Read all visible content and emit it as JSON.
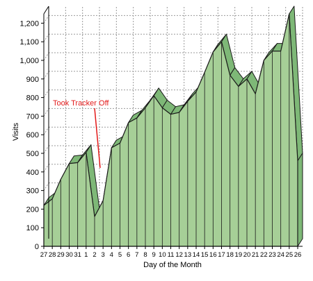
{
  "chart_data": {
    "type": "area",
    "title": "",
    "xlabel": "Day of the Month",
    "ylabel": "Visits",
    "ylim": [
      0,
      1250
    ],
    "yticks": [
      0,
      100,
      200,
      300,
      400,
      500,
      600,
      700,
      800,
      900,
      1000,
      1100,
      1200
    ],
    "ytick_labels": [
      "0",
      "100",
      "200",
      "300",
      "400",
      "500",
      "600",
      "700",
      "800",
      "900",
      "1,000",
      "1,100",
      "1,200"
    ],
    "grid": true,
    "three_d": true,
    "categories": [
      "27",
      "28",
      "29",
      "30",
      "31",
      "1",
      "2",
      "3",
      "4",
      "5",
      "6",
      "7",
      "8",
      "9",
      "10",
      "11",
      "12",
      "13",
      "14",
      "15",
      "16",
      "17",
      "18",
      "19",
      "20",
      "21",
      "22",
      "23",
      "24",
      "25",
      "26"
    ],
    "series": [
      {
        "values": [
          220,
          255,
          360,
          445,
          450,
          505,
          160,
          245,
          530,
          555,
          665,
          690,
          745,
          810,
          745,
          710,
          720,
          780,
          830,
          935,
          1045,
          1100,
          920,
          860,
          900,
          820,
          1000,
          1050,
          1050,
          1250,
          460
        ]
      }
    ],
    "colors": {
      "fill": "#a6cf97",
      "top_face": "#7eb877",
      "outline": "#1a1a1a",
      "grid": "#9a9a9a",
      "annotation": "#e31a1a"
    },
    "annotations": [
      {
        "text": "Took Tracker Off",
        "category": "2",
        "value": 410
      }
    ]
  }
}
